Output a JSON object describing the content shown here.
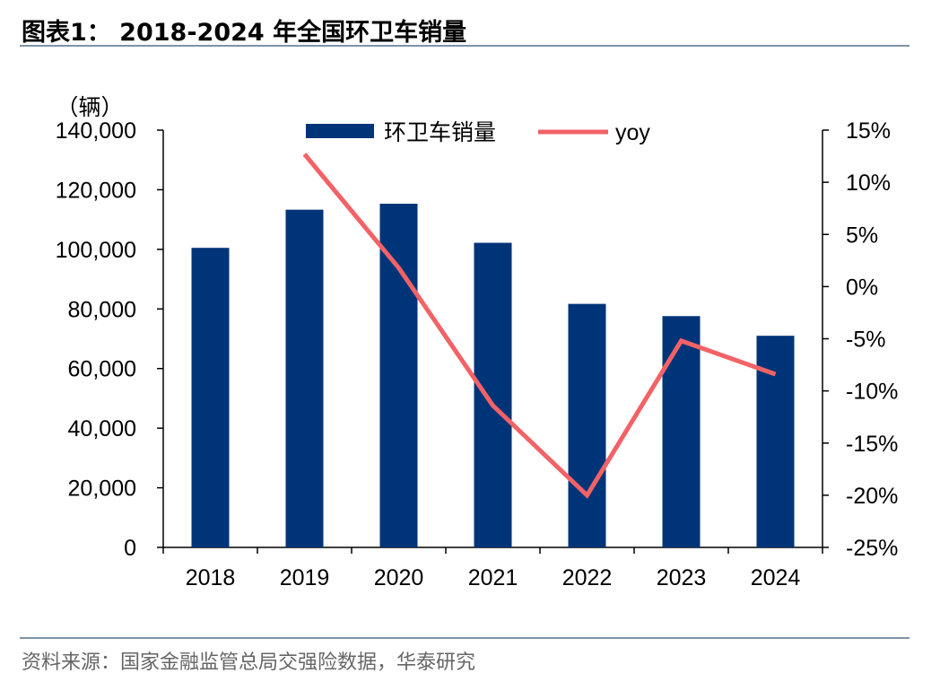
{
  "header": {
    "title": "图表1： 2018-2024 年全国环卫车销量"
  },
  "footer": {
    "source": "资料来源：国家金融监管总局交强险数据，华泰研究"
  },
  "colors": {
    "bar": "#003478",
    "line": "#f26266",
    "rule": "#7f93a8"
  },
  "chart_data": {
    "type": "bar",
    "title": "",
    "categories": [
      "2018",
      "2019",
      "2020",
      "2021",
      "2022",
      "2023",
      "2024"
    ],
    "series": [
      {
        "name": "环卫车销量",
        "type": "bar",
        "axis": "left",
        "values": [
          100500,
          113300,
          115300,
          102200,
          81700,
          77600,
          71000
        ]
      },
      {
        "name": "yoy",
        "type": "line",
        "axis": "right",
        "values": [
          null,
          12.7,
          1.8,
          -11.4,
          -20.0,
          -5.2,
          -8.4
        ]
      }
    ],
    "ylabel_left": "（辆）",
    "ylim_left": [
      0,
      140000
    ],
    "yticks_left": [
      "0",
      "20,000",
      "40,000",
      "60,000",
      "80,000",
      "100,000",
      "120,000",
      "140,000"
    ],
    "ylim_right": [
      -25,
      15
    ],
    "yticks_right": [
      "-25%",
      "-20%",
      "-15%",
      "-10%",
      "-5%",
      "0%",
      "5%",
      "10%",
      "15%"
    ],
    "legend": "top-center",
    "grid": false
  }
}
